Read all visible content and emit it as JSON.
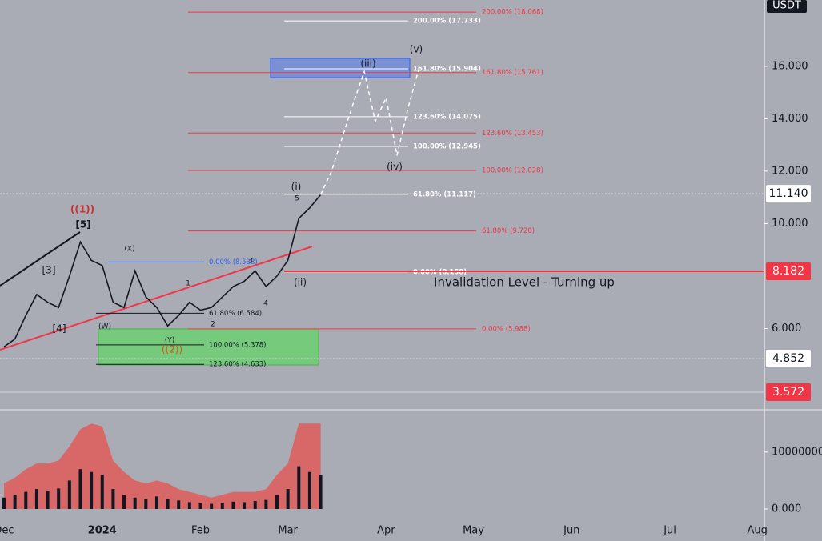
{
  "chart_data": [
    {
      "type": "line",
      "currency": "USDT",
      "categories": [
        "Dec",
        null,
        null,
        null,
        null,
        null,
        null,
        null,
        null,
        "2024",
        null,
        null,
        null,
        null,
        null,
        null,
        null,
        null,
        "Feb",
        null,
        null,
        null,
        null,
        null,
        null,
        null,
        "Mar",
        null,
        null,
        null,
        null,
        null,
        null,
        null,
        null,
        "Apr",
        null,
        null,
        null,
        null,
        null,
        null,
        null,
        "May",
        null,
        null,
        null,
        null,
        null,
        null,
        null,
        null,
        "Jun",
        null,
        null,
        null,
        null,
        null,
        null,
        null,
        null,
        "Jul",
        null,
        null,
        null,
        null,
        null,
        null,
        null,
        "Aug"
      ],
      "series": [
        {
          "name": "price",
          "color": "#131722",
          "dash": false,
          "values": [
            5.3,
            5.6,
            6.5,
            7.3,
            7.0,
            6.8,
            8.0,
            9.3,
            8.6,
            8.4,
            7.0,
            6.8,
            8.2,
            7.2,
            6.8,
            6.1,
            6.5,
            7.0,
            6.7,
            6.8,
            7.2,
            7.6,
            7.8,
            8.2,
            7.6,
            8.0,
            8.6,
            10.2,
            10.6,
            11.1,
            null,
            null,
            null,
            null,
            null,
            null,
            null,
            null,
            null,
            null,
            null,
            null,
            null,
            null,
            null,
            null,
            null,
            null,
            null,
            null,
            null,
            null,
            null,
            null,
            null,
            null,
            null,
            null,
            null,
            null,
            null,
            null,
            null,
            null,
            null,
            null,
            null,
            null,
            null,
            null
          ]
        },
        {
          "name": "projection",
          "color": "#ffffff",
          "dash": true,
          "values": [
            null,
            null,
            null,
            null,
            null,
            null,
            null,
            null,
            null,
            null,
            null,
            null,
            null,
            null,
            null,
            null,
            null,
            null,
            null,
            null,
            null,
            null,
            null,
            null,
            null,
            null,
            null,
            null,
            null,
            11.1,
            12.0,
            13.3,
            14.6,
            15.8,
            13.9,
            14.8,
            12.6,
            14.4,
            15.9,
            null,
            null,
            null,
            null,
            null,
            null,
            null,
            null,
            null,
            null,
            null,
            null,
            null,
            null,
            null,
            null,
            null,
            null,
            null,
            null,
            null,
            null,
            null,
            null,
            null,
            null,
            null,
            null,
            null,
            null,
            null
          ]
        }
      ],
      "ylim": [
        2.9,
        18.53
      ],
      "yticks": [
        {
          "value": 6,
          "label": "6.000"
        },
        {
          "value": 10,
          "label": "10.000"
        },
        {
          "value": 12,
          "label": "12.000"
        },
        {
          "value": 14,
          "label": "14.000"
        },
        {
          "value": 16,
          "label": "16.000"
        }
      ],
      "levels": [
        {
          "label": "200.00% (18.068)",
          "value": 18.068,
          "color": "#f23645"
        },
        {
          "label": "161.80% (15.761)",
          "value": 15.761,
          "color": "#f23645"
        },
        {
          "label": "123.60% (13.453)",
          "value": 13.453,
          "color": "#f23645"
        },
        {
          "label": "100.00% (12.028)",
          "value": 12.028,
          "color": "#f23645"
        },
        {
          "label": "61.80% (9.720)",
          "value": 9.72,
          "color": "#f23645"
        },
        {
          "label": "0.00% (5.988)",
          "value": 5.988,
          "color": "#f23645"
        },
        {
          "label": "200.00% (17.733)",
          "value": 17.733,
          "color": "#ffffff"
        },
        {
          "label": "161.80% (15.904)",
          "value": 15.904,
          "color": "#ffffff"
        },
        {
          "label": "123.60% (14.075)",
          "value": 14.075,
          "color": "#ffffff"
        },
        {
          "label": "100.00% (12.945)",
          "value": 12.945,
          "color": "#ffffff"
        },
        {
          "label": "61.80% (11.117)",
          "value": 11.117,
          "color": "#ffffff"
        },
        {
          "label": "0.00% (8.158)",
          "value": 8.158,
          "color": "#ffffff"
        },
        {
          "label": "0.00% (8.538)",
          "value": 8.538,
          "color": "#2962ff"
        },
        {
          "label": "61.80% (6.584)",
          "value": 6.584,
          "color": "#131722"
        },
        {
          "label": "100.00% (5.378)",
          "value": 5.378,
          "color": "#131722"
        },
        {
          "label": "123.60% (4.633)",
          "value": 4.633,
          "color": "#131722"
        }
      ],
      "annotations": [
        {
          "text": "((1))",
          "color": "#d32f2f"
        },
        {
          "text": "[5]",
          "color": "#131722"
        },
        {
          "text": "[3]",
          "color": "#131722"
        },
        {
          "text": "[4]",
          "color": "#131722"
        },
        {
          "text": "(X)",
          "color": "#131722"
        },
        {
          "text": "(W)",
          "color": "#131722"
        },
        {
          "text": "(Y)",
          "color": "#131722"
        },
        {
          "text": "((2))",
          "color": "#e65100"
        },
        {
          "text": "1",
          "color": "#131722"
        },
        {
          "text": "2",
          "color": "#131722"
        },
        {
          "text": "3",
          "color": "#131722"
        },
        {
          "text": "4",
          "color": "#131722"
        },
        {
          "text": "5",
          "color": "#131722"
        },
        {
          "text": "(i)",
          "color": "#131722"
        },
        {
          "text": "(ii)",
          "color": "#131722"
        },
        {
          "text": "(iii)",
          "color": "#131722"
        },
        {
          "text": "(iv)",
          "color": "#131722"
        },
        {
          "text": "(v)",
          "color": "#131722"
        },
        {
          "text": "Invalidation Level - Turning up",
          "color": "#131722"
        }
      ],
      "price_tags": [
        {
          "value": 11.14,
          "label": "11.140",
          "color": "#ffffff",
          "text_color": "#131722",
          "line": "dotted"
        },
        {
          "value": 8.182,
          "label": "8.182",
          "color": "#f23645",
          "text_color": "#ffffff",
          "line": "solid"
        },
        {
          "value": 4.852,
          "label": "4.852",
          "color": "#ffffff",
          "text_color": "#131722",
          "line": "dotted"
        },
        {
          "value": 3.572,
          "label": "3.572",
          "color": "#f23645",
          "text_color": "#ffffff",
          "line": "plain"
        }
      ]
    },
    {
      "type": "volume",
      "series": [
        {
          "name": "volume",
          "color": "#131722",
          "values": [
            2000000,
            2500000,
            3000000,
            3500000,
            3200000,
            3600000,
            5000000,
            7000000,
            6500000,
            6000000,
            3500000,
            2500000,
            2000000,
            1800000,
            2200000,
            1800000,
            1500000,
            1200000,
            1000000,
            900000,
            1000000,
            1300000,
            1200000,
            1400000,
            1600000,
            2500000,
            3500000,
            7500000,
            6500000,
            6000000
          ]
        },
        {
          "name": "envelope",
          "color": "#e05a5a",
          "values": [
            4500000,
            5500000,
            7000000,
            8000000,
            8000000,
            8500000,
            11000000,
            14000000,
            15000000,
            14500000,
            8500000,
            6500000,
            5000000,
            4500000,
            5000000,
            4500000,
            3500000,
            3000000,
            2500000,
            2000000,
            2500000,
            3000000,
            3000000,
            3000000,
            3500000,
            6000000,
            8000000,
            15000000,
            15000000,
            15000000
          ]
        }
      ],
      "ylim": [
        0,
        17000000
      ],
      "yticks": [
        {
          "value": 0,
          "label": "0.000"
        },
        10000000
      ]
    }
  ]
}
